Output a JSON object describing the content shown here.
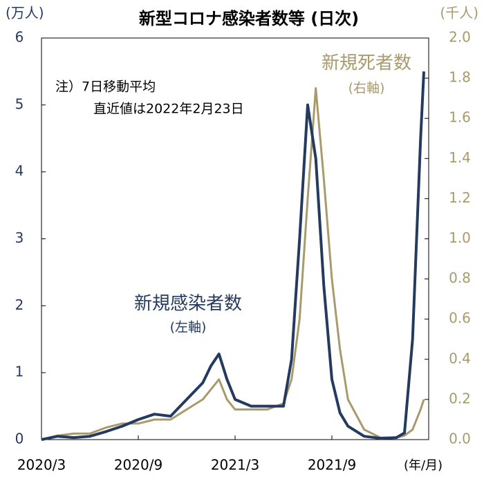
{
  "chart_data": {
    "type": "line",
    "title": "新型コロナ感染者数等 (日次)",
    "y_label": "(万人)",
    "y2_label": "(千人)",
    "x_unit_label": "(年/月)",
    "notes": [
      "注）7日移動平均",
      "直近値は2022年2月23日"
    ],
    "annotations": [
      "(左軸)",
      "(右軸)"
    ],
    "x": [
      0,
      1,
      2,
      3,
      4,
      5,
      6,
      7,
      8,
      9,
      10,
      10.5,
      11,
      11.5,
      12,
      13,
      14,
      15,
      15.5,
      16,
      16.5,
      17,
      17.5,
      18,
      18.5,
      19,
      20,
      21,
      22,
      22.5,
      23,
      23.5,
      23.7
    ],
    "series": [
      {
        "name": "新規感染者数",
        "color": "#243a5e",
        "values": [
          0,
          0.05,
          0.03,
          0.05,
          0.12,
          0.2,
          0.3,
          0.38,
          0.35,
          0.6,
          0.85,
          1.1,
          1.28,
          0.9,
          0.6,
          0.5,
          0.5,
          0.5,
          1.2,
          3.0,
          5.0,
          4.2,
          2.3,
          0.9,
          0.4,
          0.2,
          0.05,
          0.02,
          0.03,
          0.1,
          1.5,
          4.5,
          5.5
        ]
      },
      {
        "name": "新規死者数",
        "color": "#a89a6a",
        "axis": "y2",
        "values": [
          0,
          0.02,
          0.03,
          0.03,
          0.06,
          0.08,
          0.08,
          0.1,
          0.1,
          0.15,
          0.2,
          0.25,
          0.3,
          0.2,
          0.15,
          0.15,
          0.15,
          0.18,
          0.3,
          0.6,
          1.2,
          1.75,
          1.3,
          0.8,
          0.45,
          0.2,
          0.05,
          0.01,
          0.01,
          0.02,
          0.05,
          0.15,
          0.2
        ]
      }
    ],
    "xlim": [
      0,
      24
    ],
    "xticks": [
      {
        "value": 0,
        "label": "2020/3"
      },
      {
        "value": 6,
        "label": "2020/9"
      },
      {
        "value": 12,
        "label": "2021/3"
      },
      {
        "value": 18,
        "label": "2021/9"
      }
    ],
    "ylim": [
      0,
      6
    ],
    "yticks": [
      0,
      1,
      2,
      3,
      4,
      5,
      6
    ],
    "y2lim": [
      0,
      2
    ],
    "y2ticks": [
      {
        "value": 0,
        "label": "0.0"
      },
      0.2,
      0.4,
      0.6,
      0.8,
      {
        "value": 1,
        "label": "1.0"
      },
      1.2,
      1.4,
      1.6,
      1.8,
      {
        "value": 2,
        "label": "2.0"
      }
    ]
  }
}
